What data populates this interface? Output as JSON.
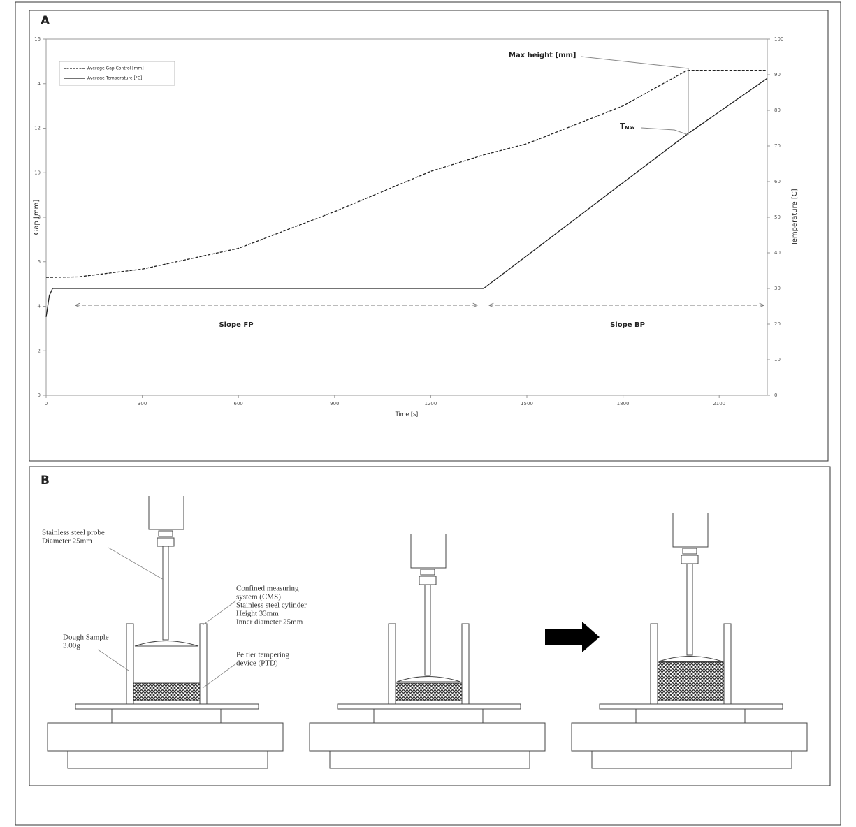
{
  "chart_data": {
    "type": "line",
    "panel": "A",
    "xlabel": "Time [s]",
    "ylabel": "Gap [mm]",
    "y2label": "Temperature [C]",
    "x": [
      0,
      10,
      20,
      100,
      300,
      600,
      900,
      1200,
      1365,
      1500,
      1800,
      2000,
      2250
    ],
    "series": [
      {
        "name": "Average Gap Control [mm]",
        "color": "#222222",
        "dash": true,
        "values": [
          5.3,
          5.3,
          5.3,
          5.32,
          5.67,
          6.6,
          8.25,
          10.06,
          10.8,
          11.3,
          13.0,
          14.6,
          14.6
        ]
      },
      {
        "name": "Average Temperature [°C]",
        "color": "#222222",
        "dash": false,
        "axis": "y2",
        "values": [
          22,
          28,
          30,
          30,
          30,
          30,
          30,
          30,
          30,
          39.2,
          59.7,
          73.3,
          89
        ]
      }
    ],
    "xlim": [
      0,
      2250
    ],
    "xticks": [
      0,
      300,
      600,
      900,
      1200,
      1500,
      1800,
      2100
    ],
    "ylim": [
      0,
      16
    ],
    "yticks": [
      0,
      2,
      4,
      6,
      8,
      10,
      12,
      14,
      16
    ],
    "y2lim": [
      0,
      100
    ],
    "y2ticks": [
      0,
      10,
      20,
      30,
      40,
      50,
      60,
      70,
      80,
      90,
      100
    ],
    "legend": "upper left",
    "grid": false,
    "annotations": {
      "max_height": "Max height [mm]",
      "t_max": "T",
      "t_max_sub": "Max",
      "slope_fp": "Slope FP",
      "slope_bp": "Slope BP"
    }
  },
  "diagram": {
    "panel": "B",
    "probe_label": [
      "Stainless steel probe",
      "Diameter 25mm"
    ],
    "cms_label": [
      "Confined measuring",
      "system (CMS)",
      "Stainless steel cylinder",
      "Height 33mm",
      "Inner diameter 25mm"
    ],
    "dough_label": [
      "Dough Sample",
      "3.00g"
    ],
    "peltier_label": [
      "Peltier tempering",
      "device (PTD)"
    ]
  }
}
